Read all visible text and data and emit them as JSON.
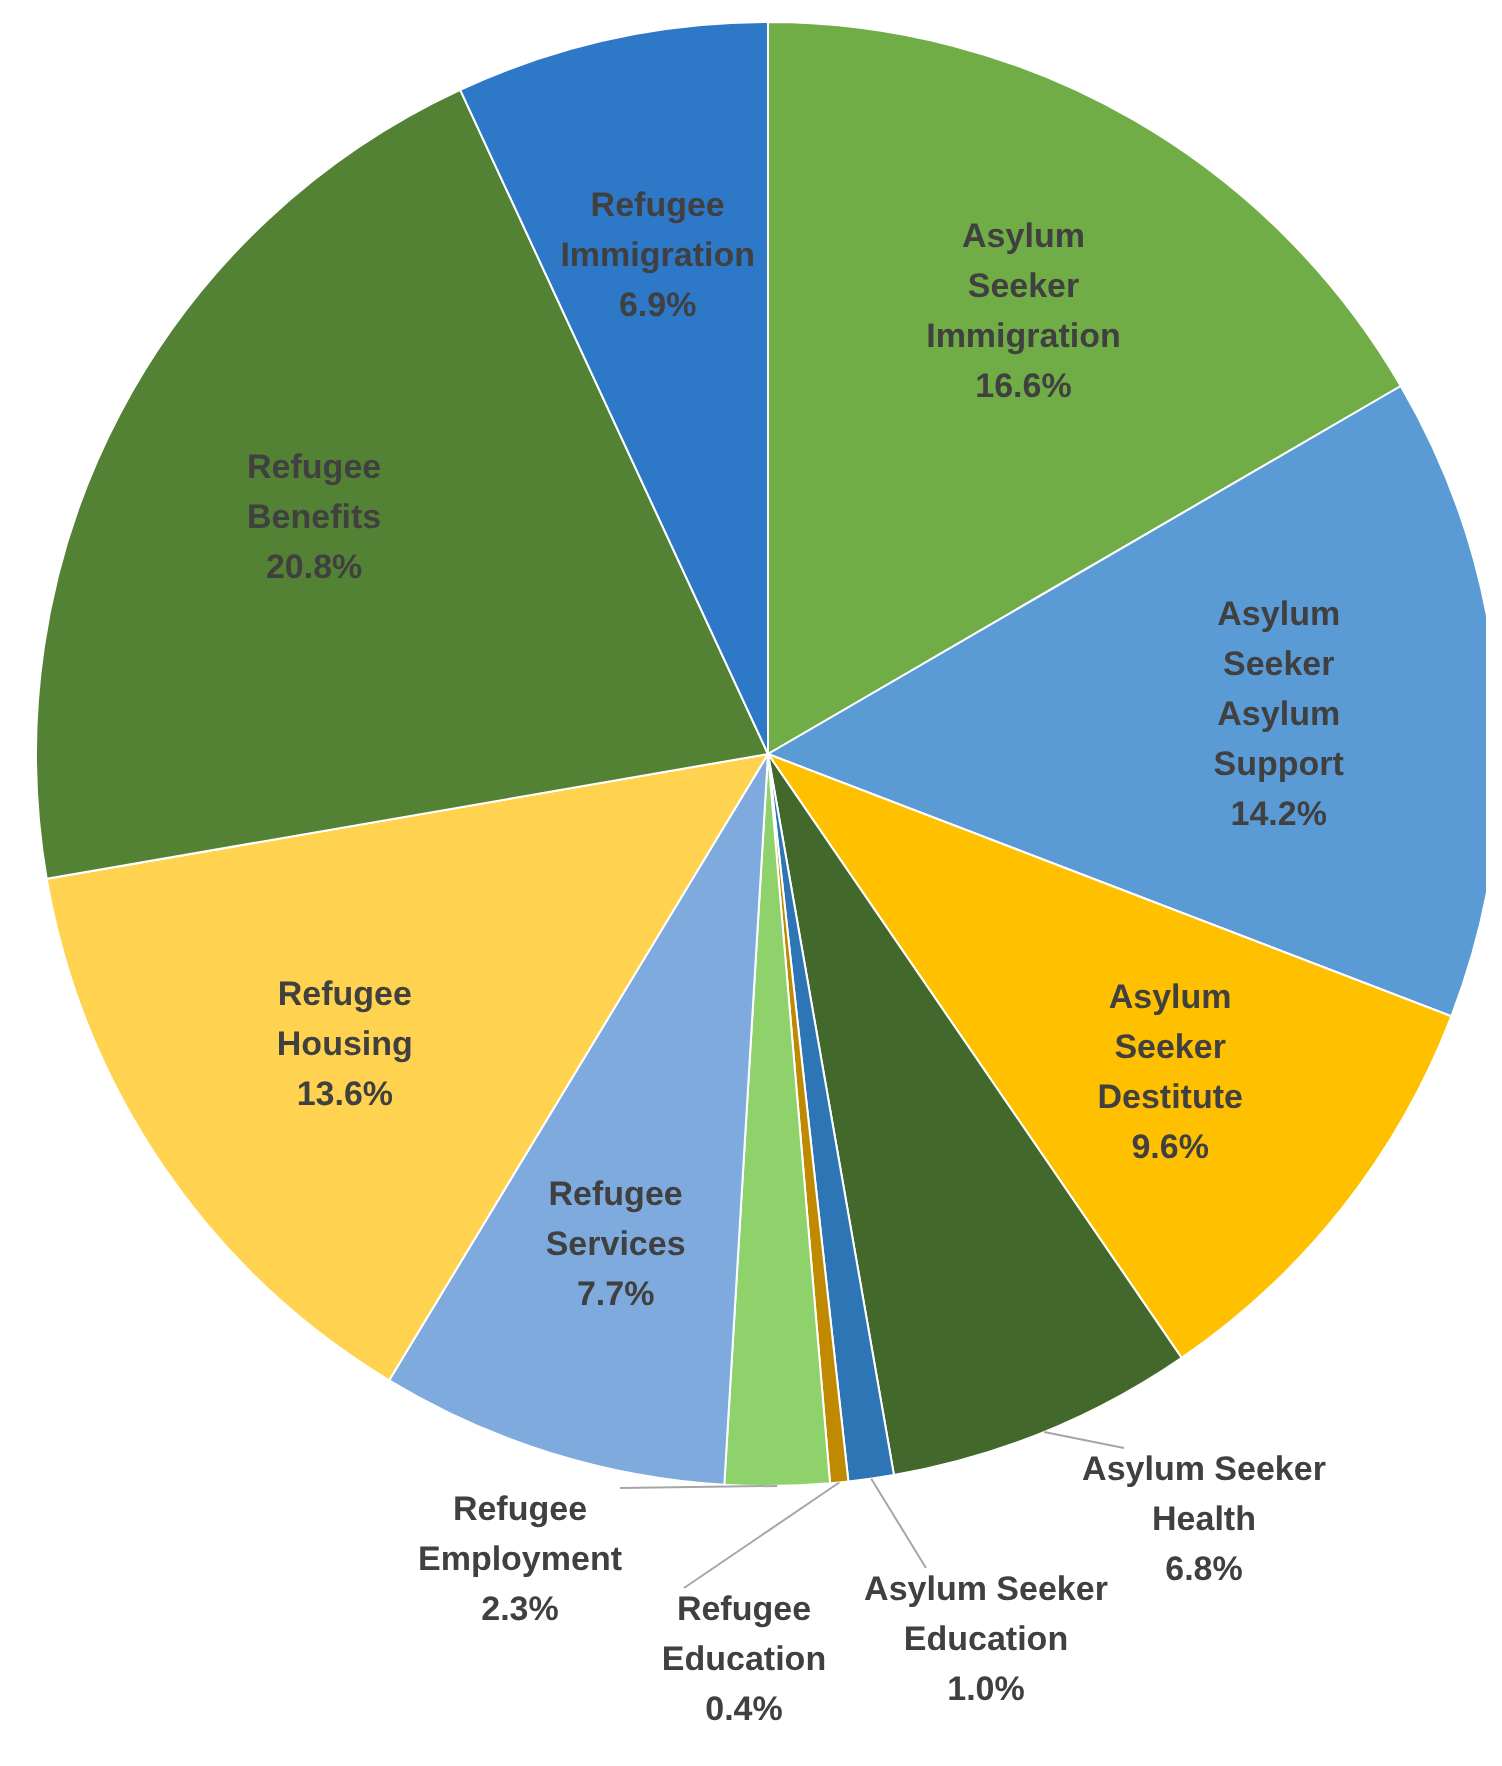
{
  "chart_data": {
    "type": "pie",
    "categories": [
      "Asylum Seeker Immigration",
      "Asylum Seeker Asylum Support",
      "Asylum Seeker Destitute",
      "Asylum Seeker Health",
      "Asylum Seeker Education",
      "Refugee Education",
      "Refugee Employment",
      "Refugee Services",
      "Refugee Housing",
      "Refugee Benefits",
      "Refugee Immigration"
    ],
    "values": [
      16.6,
      14.2,
      9.6,
      6.8,
      1.0,
      0.4,
      2.3,
      7.7,
      13.6,
      20.8,
      6.9
    ],
    "value_labels": [
      "16.6%",
      "14.2%",
      "9.6%",
      "6.8%",
      "1.0%",
      "0.4%",
      "2.3%",
      "7.7%",
      "13.6%",
      "20.8%",
      "6.9%"
    ],
    "colors": [
      "#70ad47",
      "#5b9bd5",
      "#ffc000",
      "#43682b",
      "#2e75b6",
      "#c08a00",
      "#8fd16a",
      "#7eaadd",
      "#ffd34f",
      "#548235",
      "#2e78c8"
    ]
  }
}
